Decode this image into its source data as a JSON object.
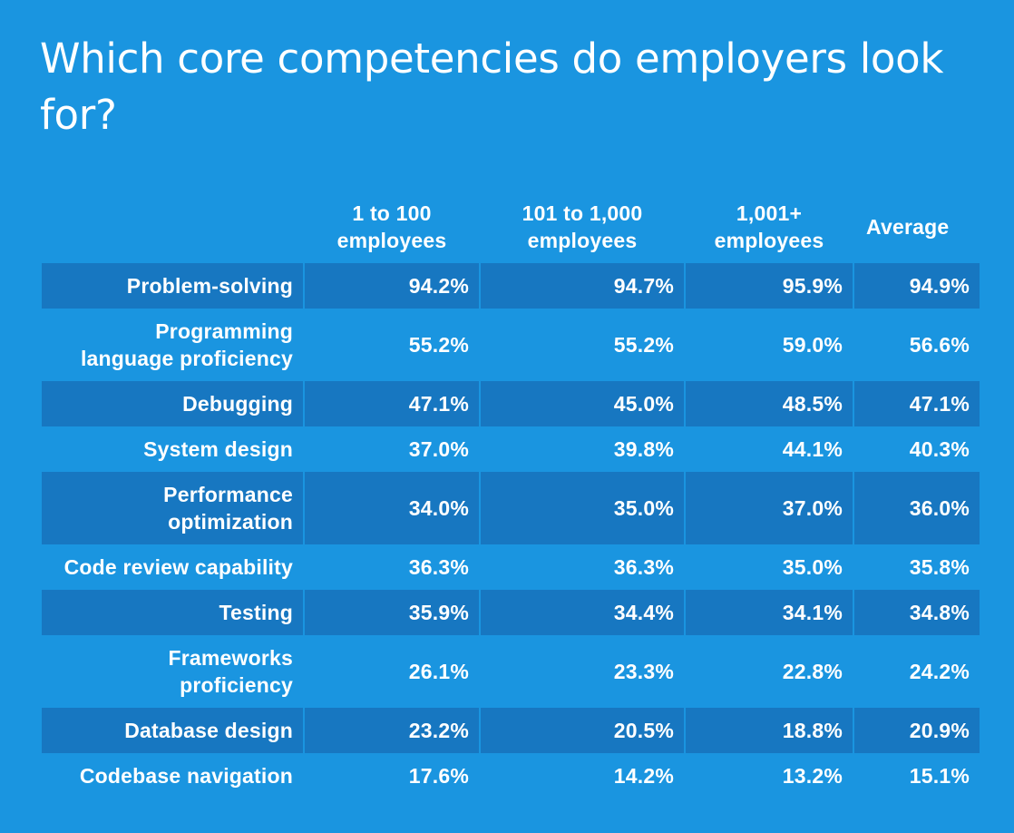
{
  "title": "Which core competencies do employers look for?",
  "colors": {
    "background": "#1a95e0",
    "row_shade": "#1777c1",
    "text": "#ffffff"
  },
  "chart_data": {
    "type": "table",
    "title": "Which core competencies do employers look for?",
    "columns": [
      "1 to 100 employees",
      "101 to 1,000 employees",
      "1,001+ employees",
      "Average"
    ],
    "column_lines": [
      [
        "1 to 100",
        "employees"
      ],
      [
        "101 to 1,000",
        "employees"
      ],
      [
        "1,001+",
        "employees"
      ],
      [
        "Average"
      ]
    ],
    "unit": "%",
    "rows": [
      {
        "label": "Problem-solving",
        "label_lines": [
          "Problem-solving"
        ],
        "values": [
          "94.2%",
          "94.7%",
          "95.9%",
          "94.9%"
        ]
      },
      {
        "label": "Programming language proficiency",
        "label_lines": [
          "Programming",
          "language proficiency"
        ],
        "values": [
          "55.2%",
          "55.2%",
          "59.0%",
          "56.6%"
        ]
      },
      {
        "label": "Debugging",
        "label_lines": [
          "Debugging"
        ],
        "values": [
          "47.1%",
          "45.0%",
          "48.5%",
          "47.1%"
        ]
      },
      {
        "label": "System design",
        "label_lines": [
          "System design"
        ],
        "values": [
          "37.0%",
          "39.8%",
          "44.1%",
          "40.3%"
        ]
      },
      {
        "label": "Performance optimization",
        "label_lines": [
          "Performance",
          "optimization"
        ],
        "values": [
          "34.0%",
          "35.0%",
          "37.0%",
          "36.0%"
        ]
      },
      {
        "label": "Code review capability",
        "label_lines": [
          "Code review capability"
        ],
        "values": [
          "36.3%",
          "36.3%",
          "35.0%",
          "35.8%"
        ]
      },
      {
        "label": "Testing",
        "label_lines": [
          "Testing"
        ],
        "values": [
          "35.9%",
          "34.4%",
          "34.1%",
          "34.8%"
        ]
      },
      {
        "label": "Frameworks proficiency",
        "label_lines": [
          "Frameworks",
          "proficiency"
        ],
        "values": [
          "26.1%",
          "23.3%",
          "22.8%",
          "24.2%"
        ]
      },
      {
        "label": "Database design",
        "label_lines": [
          "Database design"
        ],
        "values": [
          "23.2%",
          "20.5%",
          "18.8%",
          "20.9%"
        ]
      },
      {
        "label": "Codebase navigation",
        "label_lines": [
          "Codebase navigation"
        ],
        "values": [
          "17.6%",
          "14.2%",
          "13.2%",
          "15.1%"
        ]
      }
    ]
  }
}
